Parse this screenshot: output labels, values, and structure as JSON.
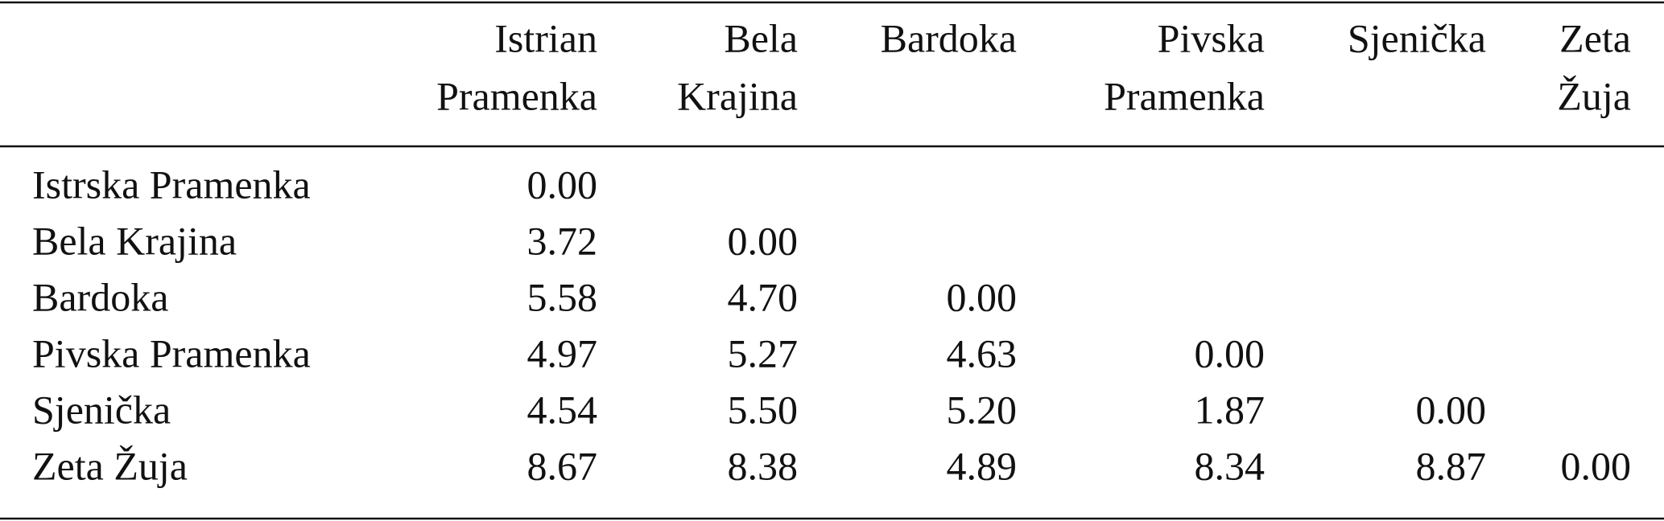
{
  "table": {
    "header": [
      [
        "Istrian",
        "Pramenka"
      ],
      [
        "Bela",
        "Krajina"
      ],
      [
        "Bardoka"
      ],
      [
        "Pivska",
        "Pramenka"
      ],
      [
        "Sjenička"
      ],
      [
        "Zeta",
        "Žuja"
      ]
    ],
    "rows": [
      {
        "name": "Istrska Pramenka",
        "values": [
          "0.00"
        ]
      },
      {
        "name": "Bela Krajina",
        "values": [
          "3.72",
          "0.00"
        ]
      },
      {
        "name": "Bardoka",
        "values": [
          "5.58",
          "4.70",
          "0.00"
        ]
      },
      {
        "name": "Pivska Pramenka",
        "values": [
          "4.97",
          "5.27",
          "4.63",
          "0.00"
        ]
      },
      {
        "name": "Sjenička",
        "values": [
          "4.54",
          "5.50",
          "5.20",
          "1.87",
          "0.00"
        ]
      },
      {
        "name": "Zeta Žuja",
        "values": [
          "8.67",
          "8.38",
          "4.89",
          "8.34",
          "8.87",
          "0.00"
        ]
      }
    ]
  }
}
